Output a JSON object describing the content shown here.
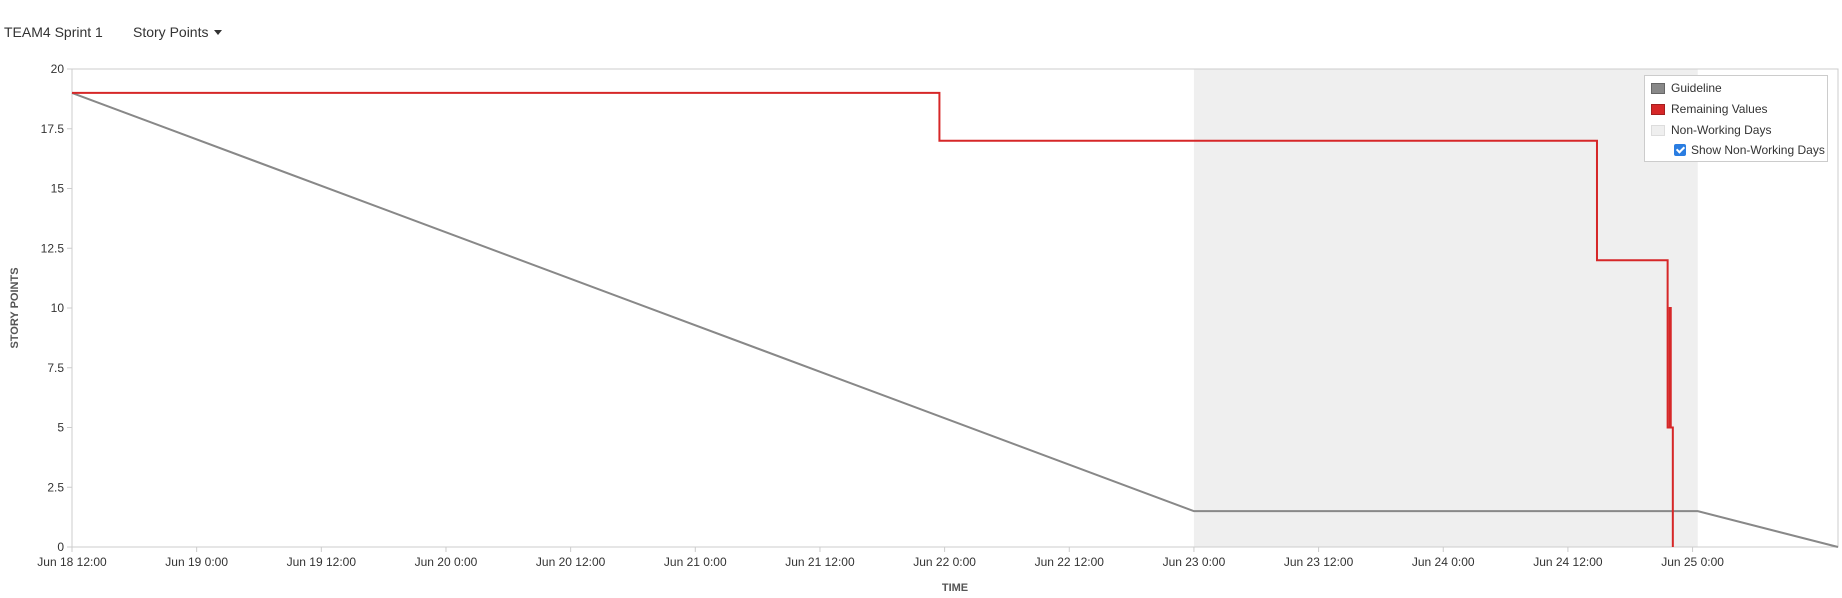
{
  "header": {
    "sprint_name": "TEAM4 Sprint 1",
    "metric_selector": "Story Points"
  },
  "legend": {
    "guideline": "Guideline",
    "remaining": "Remaining Values",
    "non_working": "Non-Working Days",
    "show_non_working": "Show Non-Working Days",
    "show_non_working_checked": true
  },
  "colors": {
    "guideline": "#888888",
    "remaining": "#d62728",
    "non_working": "#efefef",
    "axis": "#cccccc"
  },
  "chart_data": {
    "type": "line",
    "xlabel": "TIME",
    "ylabel": "STORY POINTS",
    "x_unit": "hours since Jun 18 12:00",
    "xlim": [
      0,
      170
    ],
    "ylim": [
      0,
      20
    ],
    "y_ticks": [
      0,
      2.5,
      5,
      7.5,
      10,
      12.5,
      15,
      17.5,
      20
    ],
    "y_tick_labels": [
      "0",
      "2.5",
      "5",
      "7.5",
      "10",
      "12.5",
      "15",
      "17.5",
      "20"
    ],
    "x_ticks": [
      0,
      12,
      24,
      36,
      48,
      60,
      72,
      84,
      96,
      108,
      120,
      132,
      144,
      156
    ],
    "x_tick_labels": [
      "Jun 18 12:00",
      "Jun 19 0:00",
      "Jun 19 12:00",
      "Jun 20 0:00",
      "Jun 20 12:00",
      "Jun 21 0:00",
      "Jun 21 12:00",
      "Jun 22 0:00",
      "Jun 22 12:00",
      "Jun 23 0:00",
      "Jun 23 12:00",
      "Jun 24 0:00",
      "Jun 24 12:00",
      "Jun 25 0:00"
    ],
    "non_working_periods": [
      [
        108,
        156.5
      ]
    ],
    "series": [
      {
        "name": "Guideline",
        "x": [
          0,
          108,
          156.5,
          170
        ],
        "y": [
          19,
          1.5,
          1.5,
          0
        ]
      },
      {
        "name": "Remaining Values",
        "step": true,
        "x": [
          0,
          83.5,
          83.5,
          146.8,
          146.8,
          153.6,
          153.6,
          153.8,
          153.8,
          153.9,
          153.9,
          154.1,
          154.1
        ],
        "y": [
          19,
          19,
          17,
          17,
          12,
          12,
          5,
          5,
          10,
          10,
          5,
          5,
          0
        ]
      }
    ]
  }
}
